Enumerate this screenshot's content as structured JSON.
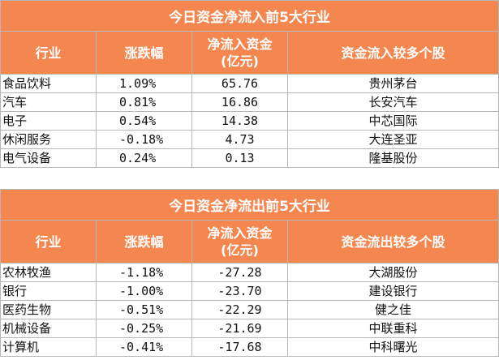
{
  "inflow": {
    "title": "今日资金净流入前5大行业",
    "headers": [
      "行业",
      "涨跌幅",
      "净流入资金\n(亿元)",
      "资金流入较多个股"
    ],
    "rows": [
      {
        "industry": "食品饮料",
        "change": "1.09%",
        "amount": "65.76",
        "stock": "贵州茅台"
      },
      {
        "industry": "汽车",
        "change": "0.81%",
        "amount": "16.86",
        "stock": "长安汽车"
      },
      {
        "industry": "电子",
        "change": "0.54%",
        "amount": "14.38",
        "stock": "中芯国际"
      },
      {
        "industry": "休闲服务",
        "change": "-0.18%",
        "amount": "4.73",
        "stock": "大连圣亚"
      },
      {
        "industry": "电气设备",
        "change": "0.24%",
        "amount": "0.13",
        "stock": "隆基股份"
      }
    ]
  },
  "outflow": {
    "title": "今日资金净流出前5大行业",
    "headers": [
      "行业",
      "涨跌幅",
      "净流入资金\n(亿元)",
      "资金流出较多个股"
    ],
    "rows": [
      {
        "industry": "农林牧渔",
        "change": "-1.18%",
        "amount": "-27.28",
        "stock": "大湖股份"
      },
      {
        "industry": "银行",
        "change": "-1.00%",
        "amount": "-23.70",
        "stock": "建设银行"
      },
      {
        "industry": "医药生物",
        "change": "-0.51%",
        "amount": "-22.29",
        "stock": "健之佳"
      },
      {
        "industry": "机械设备",
        "change": "-0.25%",
        "amount": "-21.69",
        "stock": "中联重科"
      },
      {
        "industry": "计算机",
        "change": "-0.41%",
        "amount": "-17.68",
        "stock": "中科曙光"
      }
    ]
  }
}
